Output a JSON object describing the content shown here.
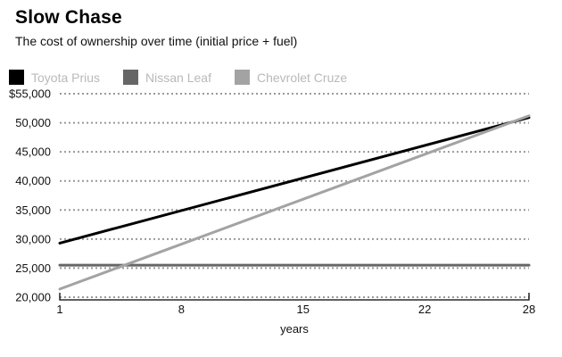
{
  "chart_data": {
    "type": "line",
    "title": "Slow Chase",
    "subtitle": "The cost of ownership over time (initial price + fuel)",
    "xlabel": "years",
    "ylabel": "",
    "xlim": [
      1,
      28
    ],
    "ylim": [
      20000,
      55000
    ],
    "x_ticks": [
      1,
      8,
      15,
      22,
      28
    ],
    "y_ticks": [
      20000,
      25000,
      30000,
      35000,
      40000,
      45000,
      50000,
      55000
    ],
    "y_tick_labels": [
      "20,000",
      "25,000",
      "30,000",
      "35,000",
      "40,000",
      "45,000",
      "50,000",
      "$55,000"
    ],
    "grid": "horizontal-dotted",
    "legend_position": "top-left",
    "series": [
      {
        "name": "Toyota Prius",
        "color": "#000000",
        "x": [
          1,
          28
        ],
        "values": [
          29300,
          50900
        ]
      },
      {
        "name": "Nissan Leaf",
        "color": "#666666",
        "x": [
          1,
          28
        ],
        "values": [
          25500,
          25500
        ]
      },
      {
        "name": "Chevrolet Cruze",
        "color": "#a3a3a3",
        "x": [
          1,
          28
        ],
        "values": [
          21400,
          51200
        ]
      }
    ]
  },
  "style_colors": {
    "grid": "#999999",
    "axis": "#000000",
    "tick_text": "#111111",
    "legend_text": "#b9b9b9",
    "background": "#ffffff"
  }
}
